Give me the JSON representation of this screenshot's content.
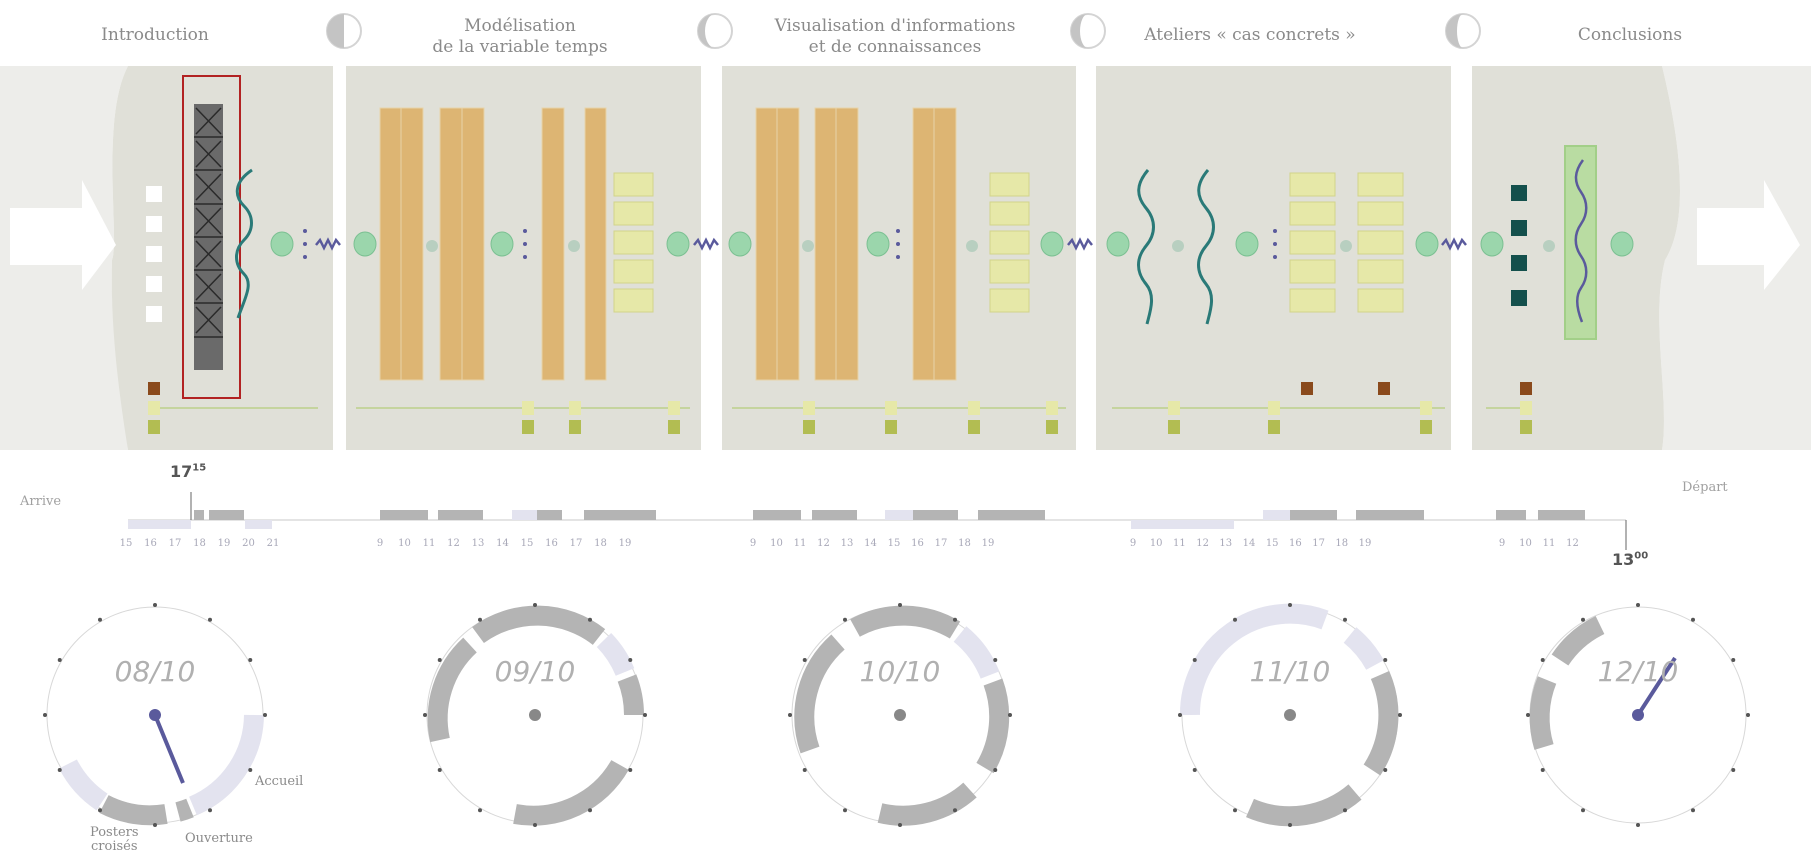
{
  "sections": [
    {
      "title": "Introduction"
    },
    {
      "title": "Modélisation\nde la variable temps"
    },
    {
      "title": "Visualisation d'informations\net de connaissances"
    },
    {
      "title": "Ateliers « cas concrets »"
    },
    {
      "title": "Conclusions"
    }
  ],
  "timeline": {
    "arrive_label": "Arrive",
    "depart_label": "Départ",
    "start_time": {
      "hour": "17",
      "minutes": "15"
    },
    "end_time": {
      "hour": "13",
      "minutes": "00"
    },
    "day_ticks": [
      [
        "15",
        "16",
        "17",
        "18",
        "19",
        "20",
        "21"
      ],
      [
        "9",
        "10",
        "11",
        "12",
        "13",
        "14",
        "15",
        "16",
        "17",
        "18",
        "19"
      ],
      [
        "9",
        "10",
        "11",
        "12",
        "13",
        "14",
        "15",
        "16",
        "17",
        "18",
        "19"
      ],
      [
        "9",
        "10",
        "11",
        "12",
        "13",
        "14",
        "15",
        "16",
        "17",
        "18",
        "19"
      ],
      [
        "9",
        "10",
        "11",
        "12"
      ]
    ]
  },
  "clocks": [
    {
      "date": "08/10"
    },
    {
      "date": "09/10"
    },
    {
      "date": "10/10"
    },
    {
      "date": "11/10"
    },
    {
      "date": "12/10"
    }
  ],
  "clock_annotations": {
    "accueil": "Accueil",
    "posters": "Posters\ncroisés",
    "ouverture": "Ouverture"
  },
  "colors": {
    "panel_bg": "#e0e0d8",
    "column_tan": "#ddb573",
    "box_yellow": "#e6e8a8",
    "node_green": "#9bd6ac",
    "wave_teal": "#2a7a78",
    "wave_purple": "#5a5a9c",
    "bar_gray": "#b4b4b4",
    "bar_lavender": "#e3e3ef",
    "highlight_red": "#b22222"
  },
  "icons": [
    "arrow-right-icon",
    "half-moon-icon",
    "squiggle-icon",
    "node-icon",
    "vertical-dots-icon"
  ]
}
